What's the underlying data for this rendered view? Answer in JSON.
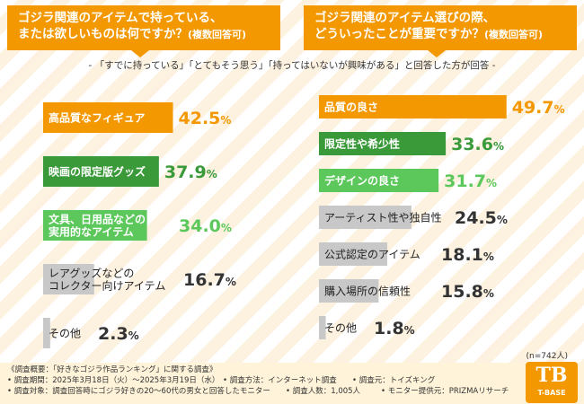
{
  "header": {
    "left_title_line1": "ゴジラ関連のアイテムで持っている、",
    "left_title_line2": "または欲しいものは何ですか？",
    "left_title_note": "(複数回答可)",
    "right_title_line1": "ゴジラ関連のアイテム選びの際、",
    "right_title_line2": "どういったことが重要ですか？",
    "right_title_note": "(複数回答可)",
    "subtitle": "- 「すでに持っている」「とてもそう思う」「持ってはいないが興味がある」と回答した方が回答 -"
  },
  "chart_data": [
    {
      "type": "bar",
      "orientation": "horizontal",
      "categories": [
        "高品質なフィギュア",
        "映画の限定版グッズ",
        "文具、日用品などの\n実用的なアイテム",
        "レアグッズなどの\nコレクター向けアイテム",
        "その他"
      ],
      "values": [
        42.5,
        37.9,
        34.0,
        16.7,
        2.3
      ],
      "labels": [
        "42.5%",
        "37.9%",
        "34.0%",
        "16.7%",
        "2.3%"
      ],
      "colors": [
        "#f39800",
        "#3a9a3a",
        "#5cc85c",
        "#c8c8c8",
        "#c8c8c8"
      ],
      "ylim": [
        0,
        50
      ]
    },
    {
      "type": "bar",
      "orientation": "horizontal",
      "categories": [
        "品質の良さ",
        "限定性や希少性",
        "デザインの良さ",
        "アーティスト性や独自性",
        "公式認定のアイテム",
        "購入場所の信頼性",
        "その他"
      ],
      "values": [
        49.7,
        33.6,
        31.7,
        24.5,
        18.1,
        15.8,
        1.8
      ],
      "labels": [
        "49.7%",
        "33.6%",
        "31.7%",
        "24.5%",
        "18.1%",
        "15.8%",
        "1.8%"
      ],
      "colors": [
        "#f39800",
        "#3a9a3a",
        "#5cc85c",
        "#c8c8c8",
        "#c8c8c8",
        "#c8c8c8",
        "#c8c8c8"
      ],
      "ylim": [
        0,
        50
      ]
    }
  ],
  "sample_note": "(n=742人)",
  "footer": {
    "line1": "《調査概要：「好きなゴジラ作品ランキング」に関する調査》",
    "line2a": "• 調査期間：2025年3月18日（火）〜2025年3月19日（水）",
    "line2b": "• 調査方法：インターネット調査",
    "line2c": "• 調査元：トイズキング",
    "line3a": "• 調査対象：調査回答時にゴジラ好きの20〜60代の男女と回答したモニター",
    "line3b": "• 調査人数：1,005人",
    "line3c": "• モニター提供元：PRIZMAリサーチ"
  },
  "logo": {
    "mark": "TB",
    "text": "T-BASE"
  },
  "colors": {
    "header": "#f39800",
    "orange": "#f39800",
    "dark_green": "#3a9a3a",
    "light_green": "#5cc85c",
    "gray": "#c8c8c8"
  }
}
